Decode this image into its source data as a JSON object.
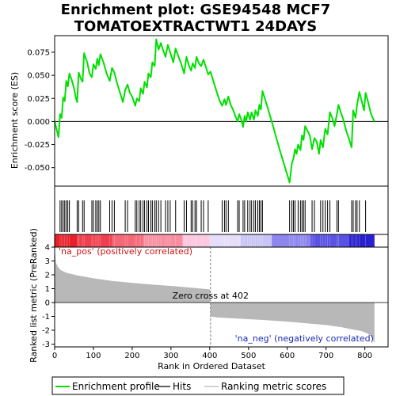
{
  "chart_data": {
    "type": "line",
    "title_line1": "Enrichment plot: GSE94548 MCF7",
    "title_line2": "TOMATOEXTRACTWT1 24DAYS",
    "xlabel": "Rank in Ordered Dataset",
    "ylabel_top": "Enrichment score (ES)",
    "ylabel_bottom": "Ranked list metric (PreRanked)",
    "xlim": [
      0,
      860
    ],
    "es_ylim": [
      -0.07,
      0.093
    ],
    "metric_ylim": [
      -3.2,
      4.0
    ],
    "x_ticks": [
      0,
      100,
      200,
      300,
      400,
      500,
      600,
      700,
      800
    ],
    "es_ticks": [
      -0.05,
      -0.025,
      0.0,
      0.025,
      0.05,
      0.075
    ],
    "es_tick_labels": [
      "-0.050",
      "-0.025",
      "0.000",
      "0.025",
      "0.050",
      "0.075"
    ],
    "metric_ticks": [
      -3,
      -2,
      -1,
      0,
      1,
      2,
      3,
      4
    ],
    "n_genes": 825,
    "zero_cross": 402,
    "zero_cross_label": "Zero cross at 402",
    "pos_label": "'na_pos' (positively correlated)",
    "neg_label": "'na_neg' (negatively correlated)",
    "es_curve": [
      [
        0,
        0.0
      ],
      [
        10,
        -0.017
      ],
      [
        14,
        0.008
      ],
      [
        18,
        0.004
      ],
      [
        22,
        0.026
      ],
      [
        26,
        0.022
      ],
      [
        30,
        0.044
      ],
      [
        34,
        0.038
      ],
      [
        38,
        0.052
      ],
      [
        44,
        0.045
      ],
      [
        50,
        0.036
      ],
      [
        55,
        0.025
      ],
      [
        58,
        0.021
      ],
      [
        62,
        0.053
      ],
      [
        68,
        0.046
      ],
      [
        72,
        0.043
      ],
      [
        76,
        0.074
      ],
      [
        84,
        0.064
      ],
      [
        90,
        0.052
      ],
      [
        96,
        0.048
      ],
      [
        100,
        0.062
      ],
      [
        106,
        0.057
      ],
      [
        110,
        0.068
      ],
      [
        114,
        0.061
      ],
      [
        118,
        0.073
      ],
      [
        126,
        0.064
      ],
      [
        134,
        0.052
      ],
      [
        142,
        0.044
      ],
      [
        148,
        0.058
      ],
      [
        154,
        0.053
      ],
      [
        160,
        0.043
      ],
      [
        168,
        0.032
      ],
      [
        176,
        0.021
      ],
      [
        182,
        0.034
      ],
      [
        188,
        0.04
      ],
      [
        194,
        0.031
      ],
      [
        200,
        0.027
      ],
      [
        208,
        0.017
      ],
      [
        212,
        0.025
      ],
      [
        218,
        0.022
      ],
      [
        222,
        0.036
      ],
      [
        228,
        0.03
      ],
      [
        232,
        0.043
      ],
      [
        238,
        0.037
      ],
      [
        242,
        0.052
      ],
      [
        248,
        0.048
      ],
      [
        252,
        0.064
      ],
      [
        258,
        0.06
      ],
      [
        262,
        0.089
      ],
      [
        268,
        0.078
      ],
      [
        274,
        0.085
      ],
      [
        280,
        0.077
      ],
      [
        286,
        0.07
      ],
      [
        292,
        0.083
      ],
      [
        298,
        0.075
      ],
      [
        306,
        0.064
      ],
      [
        312,
        0.079
      ],
      [
        318,
        0.072
      ],
      [
        326,
        0.063
      ],
      [
        334,
        0.052
      ],
      [
        340,
        0.07
      ],
      [
        346,
        0.061
      ],
      [
        352,
        0.055
      ],
      [
        356,
        0.063
      ],
      [
        362,
        0.058
      ],
      [
        366,
        0.07
      ],
      [
        372,
        0.063
      ],
      [
        378,
        0.06
      ],
      [
        384,
        0.067
      ],
      [
        390,
        0.059
      ],
      [
        396,
        0.051
      ],
      [
        402,
        0.054
      ],
      [
        410,
        0.043
      ],
      [
        418,
        0.032
      ],
      [
        426,
        0.022
      ],
      [
        432,
        0.017
      ],
      [
        438,
        0.024
      ],
      [
        442,
        0.018
      ],
      [
        448,
        0.027
      ],
      [
        454,
        0.018
      ],
      [
        460,
        0.013
      ],
      [
        466,
        0.006
      ],
      [
        472,
        0.0
      ],
      [
        476,
        0.008
      ],
      [
        482,
        0.001
      ],
      [
        486,
        -0.006
      ],
      [
        490,
        0.006
      ],
      [
        494,
        0.0
      ],
      [
        498,
        0.01
      ],
      [
        504,
        0.002
      ],
      [
        508,
        0.01
      ],
      [
        514,
        0.002
      ],
      [
        518,
        0.012
      ],
      [
        524,
        0.006
      ],
      [
        528,
        0.018
      ],
      [
        532,
        0.013
      ],
      [
        536,
        0.033
      ],
      [
        542,
        0.025
      ],
      [
        550,
        0.014
      ],
      [
        560,
        0.0
      ],
      [
        570,
        -0.015
      ],
      [
        580,
        -0.03
      ],
      [
        590,
        -0.044
      ],
      [
        598,
        -0.055
      ],
      [
        606,
        -0.066
      ],
      [
        612,
        -0.045
      ],
      [
        616,
        -0.04
      ],
      [
        620,
        -0.03
      ],
      [
        624,
        -0.035
      ],
      [
        628,
        -0.025
      ],
      [
        634,
        -0.031
      ],
      [
        638,
        -0.015
      ],
      [
        642,
        -0.02
      ],
      [
        646,
        -0.005
      ],
      [
        652,
        -0.01
      ],
      [
        658,
        -0.015
      ],
      [
        664,
        -0.03
      ],
      [
        670,
        -0.018
      ],
      [
        676,
        -0.022
      ],
      [
        682,
        -0.035
      ],
      [
        686,
        -0.02
      ],
      [
        692,
        -0.028
      ],
      [
        698,
        -0.008
      ],
      [
        704,
        -0.014
      ],
      [
        710,
        0.01
      ],
      [
        716,
        0.004
      ],
      [
        722,
        -0.005
      ],
      [
        728,
        0.008
      ],
      [
        732,
        0.018
      ],
      [
        738,
        0.01
      ],
      [
        744,
        0.003
      ],
      [
        752,
        -0.01
      ],
      [
        760,
        -0.02
      ],
      [
        766,
        -0.028
      ],
      [
        770,
        0.012
      ],
      [
        776,
        0.004
      ],
      [
        780,
        0.018
      ],
      [
        786,
        0.032
      ],
      [
        792,
        0.022
      ],
      [
        798,
        0.012
      ],
      [
        802,
        0.031
      ],
      [
        808,
        0.022
      ],
      [
        816,
        0.008
      ],
      [
        825,
        0.0
      ]
    ],
    "hits": [
      14,
      18,
      22,
      26,
      30,
      34,
      38,
      58,
      62,
      72,
      76,
      96,
      100,
      106,
      110,
      114,
      118,
      142,
      148,
      154,
      182,
      188,
      208,
      212,
      218,
      222,
      228,
      232,
      238,
      242,
      248,
      252,
      258,
      262,
      268,
      274,
      286,
      292,
      298,
      312,
      334,
      340,
      352,
      356,
      362,
      366,
      378,
      384,
      396,
      432,
      438,
      442,
      448,
      472,
      476,
      486,
      490,
      498,
      504,
      508,
      514,
      518,
      524,
      528,
      532,
      536,
      606,
      612,
      616,
      620,
      628,
      634,
      638,
      642,
      646,
      664,
      670,
      686,
      692,
      698,
      704,
      710,
      728,
      732,
      766,
      770,
      776,
      780,
      786,
      802
    ],
    "metric_curve": [
      [
        0,
        4.0
      ],
      [
        3,
        2.9
      ],
      [
        8,
        2.6
      ],
      [
        15,
        2.35
      ],
      [
        30,
        2.15
      ],
      [
        60,
        1.95
      ],
      [
        100,
        1.75
      ],
      [
        150,
        1.55
      ],
      [
        200,
        1.42
      ],
      [
        250,
        1.3
      ],
      [
        300,
        1.2
      ],
      [
        350,
        1.08
      ],
      [
        380,
        1.0
      ],
      [
        401,
        0.95
      ],
      [
        402,
        -1.0
      ],
      [
        420,
        -1.08
      ],
      [
        450,
        -1.12
      ],
      [
        500,
        -1.2
      ],
      [
        550,
        -1.28
      ],
      [
        600,
        -1.38
      ],
      [
        650,
        -1.5
      ],
      [
        700,
        -1.62
      ],
      [
        740,
        -1.78
      ],
      [
        770,
        -1.95
      ],
      [
        790,
        -2.05
      ],
      [
        805,
        -2.2
      ],
      [
        815,
        -2.4
      ],
      [
        820,
        -2.6
      ],
      [
        825,
        -2.95
      ]
    ],
    "colors": {
      "es_line": "#00e000",
      "hit_line": "#000000",
      "metric_fill": "#b8b8b8",
      "pos_text": "#d01010",
      "neg_text": "#1a2ab0",
      "zero_line": "#808080",
      "background": "#ffffff",
      "frame": "#000000"
    },
    "heatmap_bands": [
      {
        "start": 0,
        "end": 2,
        "color": "#cc0000"
      },
      {
        "start": 2,
        "end": 60,
        "color": "#e8202a"
      },
      {
        "start": 60,
        "end": 150,
        "color": "#f04050"
      },
      {
        "start": 150,
        "end": 230,
        "color": "#f56878"
      },
      {
        "start": 230,
        "end": 330,
        "color": "#f88ea0"
      },
      {
        "start": 330,
        "end": 400,
        "color": "#fbc8e0"
      },
      {
        "start": 400,
        "end": 480,
        "color": "#e4defa"
      },
      {
        "start": 480,
        "end": 560,
        "color": "#c8c4f6"
      },
      {
        "start": 560,
        "end": 660,
        "color": "#8c86ee"
      },
      {
        "start": 660,
        "end": 760,
        "color": "#5a52e2"
      },
      {
        "start": 760,
        "end": 825,
        "color": "#2a20d0"
      }
    ],
    "legend": [
      {
        "label": "Enrichment profile",
        "swatch": "es"
      },
      {
        "label": "Hits",
        "swatch": "hit"
      },
      {
        "label": "Ranking metric scores",
        "swatch": "metric"
      }
    ]
  }
}
